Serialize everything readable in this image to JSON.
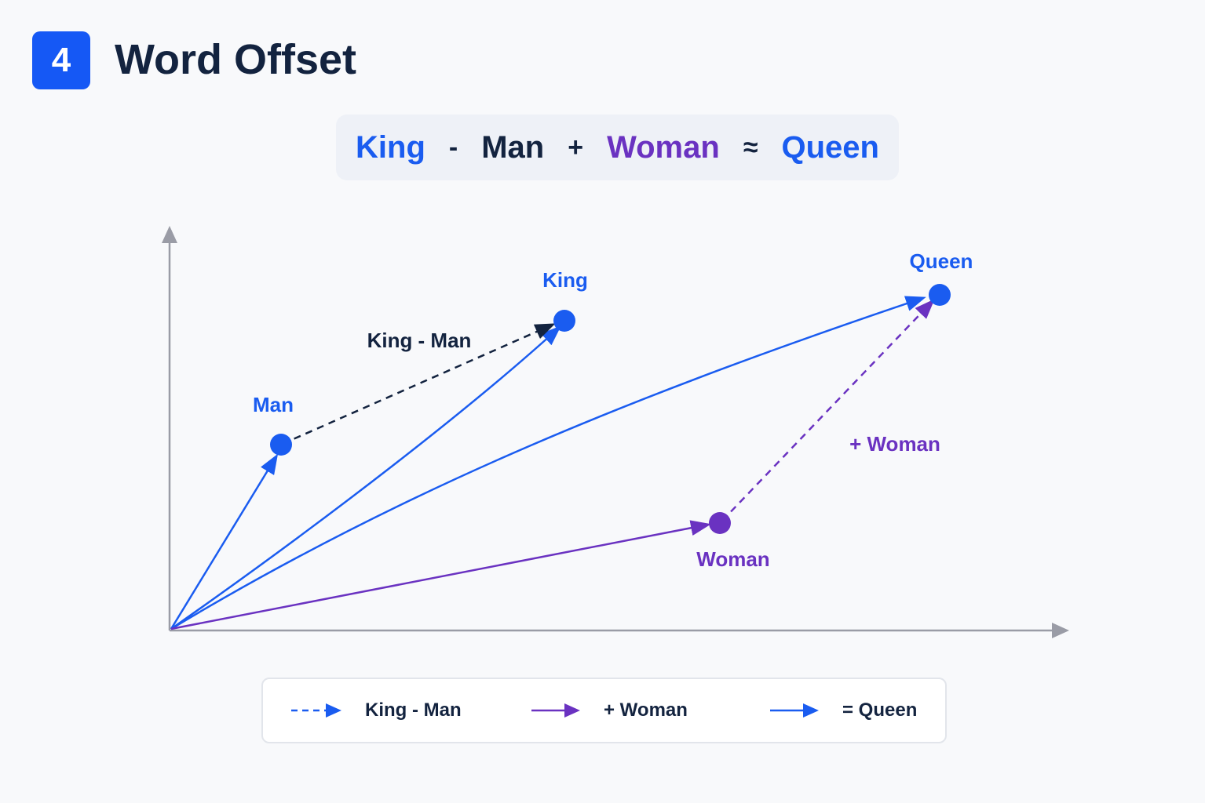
{
  "header": {
    "step_number": "4",
    "title": "Word Offset"
  },
  "equation": {
    "terms": [
      {
        "text": "King",
        "role": "word",
        "color": "#1a5cf0"
      },
      {
        "text": "-",
        "role": "op"
      },
      {
        "text": "Man",
        "role": "word",
        "color": "#13233f"
      },
      {
        "text": "+",
        "role": "op"
      },
      {
        "text": "Woman",
        "role": "word",
        "color": "#6a32c1"
      },
      {
        "text": "≈",
        "role": "op"
      },
      {
        "text": "Queen",
        "role": "word",
        "color": "#1a5cf0"
      }
    ]
  },
  "diagram": {
    "points": [
      {
        "id": "man",
        "label": "Man",
        "color": "#1a5cf0"
      },
      {
        "id": "king",
        "label": "King",
        "color": "#1a5cf0"
      },
      {
        "id": "queen",
        "label": "Queen",
        "color": "#1a5cf0"
      },
      {
        "id": "woman",
        "label": "Woman",
        "color": "#6a32c1"
      }
    ],
    "offset_labels": {
      "king_minus_man": "King - Man",
      "plus_woman": "+ Woman"
    }
  },
  "legend": {
    "items": [
      {
        "label": "King - Man",
        "line": "dashed",
        "color": "#1a5cf0"
      },
      {
        "label": "+ Woman",
        "line": "solid",
        "color": "#6a32c1"
      },
      {
        "label": "= Queen",
        "line": "solid",
        "color": "#1a5cf0"
      }
    ]
  },
  "colors": {
    "accent_blue": "#1a5cf0",
    "accent_purple": "#6a32c1",
    "dark_navy": "#13233f",
    "axis_gray": "#9a9ca6"
  }
}
